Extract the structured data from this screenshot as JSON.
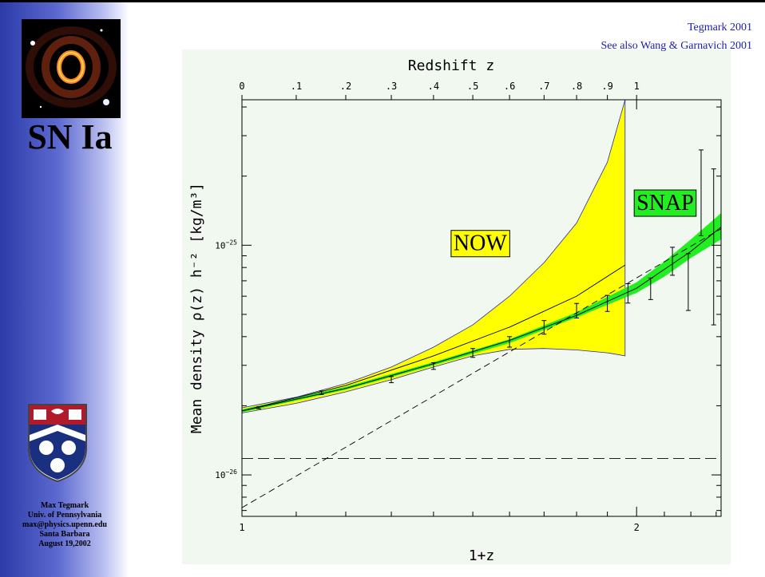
{
  "sidebar": {
    "title": "SN Ia",
    "credits": [
      "Max Tegmark",
      "Univ. of Pennsylvania",
      "max@physics.upenn.edu",
      "Santa Barbara",
      "August 19,2002"
    ]
  },
  "citations": {
    "primary": "Tegmark 2001",
    "secondary": "See also Wang & Garnavich 2001"
  },
  "colors": {
    "band_now": "#ffff00",
    "band_snap": "#22ee22",
    "background": "#f0f8f0",
    "citation": "#1c1caa"
  },
  "chart_data": {
    "type": "line",
    "title": "",
    "xlabel": "1+z",
    "ylabel": "Mean density ρ(z) h⁻² [kg/m³]",
    "top_axis_label": "Redshift z",
    "x_scale": "log",
    "y_scale": "log",
    "xlim": [
      1.0,
      2.32
    ],
    "ylim": [
      6.6e-27,
      4.3e-25
    ],
    "x_ticks": [
      {
        "value": 1,
        "label": "1"
      },
      {
        "value": 2,
        "label": "2"
      }
    ],
    "top_ticks": [
      {
        "z": 0,
        "label": "0"
      },
      {
        "z": 0.1,
        "label": ".1"
      },
      {
        "z": 0.2,
        "label": ".2"
      },
      {
        "z": 0.3,
        "label": ".3"
      },
      {
        "z": 0.4,
        "label": ".4"
      },
      {
        "z": 0.5,
        "label": ".5"
      },
      {
        "z": 0.6,
        "label": ".6"
      },
      {
        "z": 0.7,
        "label": ".7"
      },
      {
        "z": 0.8,
        "label": ".8"
      },
      {
        "z": 0.9,
        "label": ".9"
      },
      {
        "z": 1.0,
        "label": "1"
      }
    ],
    "y_ticks": [
      {
        "value": 1e-26,
        "base": "10",
        "exp": "−26"
      },
      {
        "value": 1e-25,
        "base": "10",
        "exp": "−25"
      }
    ],
    "bands": [
      {
        "name": "NOW",
        "x": [
          1.0,
          1.1,
          1.2,
          1.3,
          1.4,
          1.5,
          1.6,
          1.7,
          1.8,
          1.9,
          1.96
        ],
        "low": [
          1.86e-26,
          2.05e-26,
          2.3e-26,
          2.6e-26,
          2.95e-26,
          3.3e-26,
          3.52e-26,
          3.55e-26,
          3.5e-26,
          3.4e-26,
          3.3e-26
        ],
        "high": [
          1.96e-26,
          2.18e-26,
          2.5e-26,
          2.95e-26,
          3.6e-26,
          4.5e-26,
          6e-26,
          8.4e-26,
          1.25e-25,
          2.3e-25,
          4.3e-25
        ]
      },
      {
        "name": "SNAP",
        "x": [
          1.0,
          1.2,
          1.4,
          1.6,
          1.8,
          2.0,
          2.1,
          2.2,
          2.32
        ],
        "low": [
          1.87e-26,
          2.35e-26,
          3e-26,
          3.75e-26,
          4.85e-26,
          6.2e-26,
          7.3e-26,
          8.8e-26,
          1.06e-25
        ],
        "high": [
          1.93e-26,
          2.42e-26,
          3.1e-26,
          3.9e-26,
          5.1e-26,
          6.9e-26,
          8.5e-26,
          1.06e-25,
          1.38e-25
        ]
      }
    ],
    "lines": [
      {
        "style": "solid",
        "x": [
          1.0,
          1.2,
          1.4,
          1.6,
          1.8,
          1.96
        ],
        "y": [
          1.9e-26,
          2.45e-26,
          3.3e-26,
          4.4e-26,
          6e-26,
          8.2e-26
        ]
      },
      {
        "style": "solid",
        "x": [
          1.0,
          1.2,
          1.4,
          1.6,
          1.8,
          2.0,
          2.2,
          2.32
        ],
        "y": [
          1.9e-26,
          2.38e-26,
          3.05e-26,
          3.85e-26,
          4.95e-26,
          6.5e-26,
          9.4e-26,
          1.2e-25
        ]
      },
      {
        "style": "dashed",
        "x": [
          1.0,
          2.32
        ],
        "y": [
          7.2e-27,
          1.18e-25
        ]
      },
      {
        "style": "dashed",
        "x": [
          1.0,
          2.32
        ],
        "y": [
          1.18e-26,
          1.18e-26
        ]
      }
    ],
    "data_points": [
      {
        "x": 1.03,
        "y": 1.96e-26,
        "err": 2e-28
      },
      {
        "x": 1.15,
        "y": 2.28e-26,
        "err": 4e-28
      },
      {
        "x": 1.3,
        "y": 2.6e-26,
        "err": 8e-28
      },
      {
        "x": 1.4,
        "y": 2.98e-26,
        "err": 1e-27
      },
      {
        "x": 1.5,
        "y": 3.4e-26,
        "err": 1.5e-27
      },
      {
        "x": 1.6,
        "y": 3.8e-26,
        "err": 2e-27
      },
      {
        "x": 1.7,
        "y": 4.4e-26,
        "err": 3e-27
      },
      {
        "x": 1.8,
        "y": 5.2e-26,
        "err": 3.8e-27
      },
      {
        "x": 1.9,
        "y": 5.6e-26,
        "err": 4.5e-27
      },
      {
        "x": 1.97,
        "y": 6.2e-26,
        "err": 6e-27
      },
      {
        "x": 2.05,
        "y": 6.5e-26,
        "err": 7e-27
      },
      {
        "x": 2.13,
        "y": 8.6e-26,
        "err": 1.2e-26
      },
      {
        "x": 2.19,
        "y": 7.2e-26,
        "err": 2e-26
      },
      {
        "x": 2.24,
        "y": 1.85e-25,
        "err": 7.5e-26
      },
      {
        "x": 2.29,
        "y": 1.3e-25,
        "err": 8.5e-26
      }
    ],
    "annotations": [
      {
        "text": "NOW",
        "x": 1.45,
        "y": 1e-25,
        "fill": "#ffff00"
      },
      {
        "text": "SNAP",
        "x": 2.0,
        "y": 1.5e-25,
        "fill": "#22ee22"
      }
    ]
  }
}
